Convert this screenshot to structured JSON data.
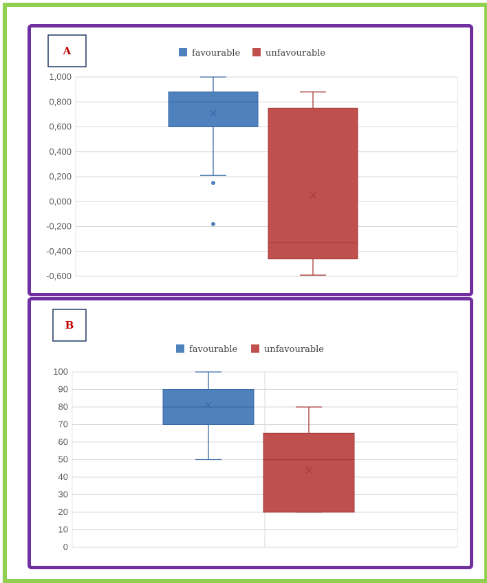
{
  "chart_data": [
    {
      "type": "box",
      "panel_label": "A",
      "legend_position": "top",
      "grid": true,
      "ylim": [
        -0.6,
        1.0
      ],
      "ytick_step": 0.2,
      "ytick_labels": [
        "1,000",
        "0,800",
        "0,600",
        "0,400",
        "0,200",
        "0,000",
        "-0,200",
        "-0,400",
        "-0,600"
      ],
      "vertical_divider": false,
      "series": [
        {
          "name": "favourable",
          "color": "#4f81bd",
          "edge_color": "#3a6aa6",
          "whisker_low": 0.21,
          "q1": 0.6,
          "median": 0.8,
          "q3": 0.88,
          "whisker_high": 1.0,
          "mean": 0.71,
          "outliers": [
            0.15,
            -0.18
          ]
        },
        {
          "name": "unfavourable",
          "color": "#c0504d",
          "edge_color": "#a33c39",
          "whisker_low": -0.59,
          "q1": -0.46,
          "median": -0.33,
          "q3": 0.75,
          "whisker_high": 0.88,
          "mean": 0.05,
          "outliers": []
        }
      ]
    },
    {
      "type": "box",
      "panel_label": "B",
      "legend_position": "top",
      "grid": true,
      "ylim": [
        0,
        100
      ],
      "ytick_step": 10,
      "ytick_labels": [
        "100",
        "90",
        "80",
        "70",
        "60",
        "50",
        "40",
        "30",
        "20",
        "10",
        "0"
      ],
      "vertical_divider": true,
      "series": [
        {
          "name": "favourable",
          "color": "#4f81bd",
          "edge_color": "#3a6aa6",
          "whisker_low": 50,
          "q1": 70,
          "median": 80,
          "q3": 90,
          "whisker_high": 100,
          "mean": 81,
          "outliers": []
        },
        {
          "name": "unfavourable",
          "color": "#c0504d",
          "edge_color": "#a33c39",
          "whisker_low": 20,
          "q1": 20,
          "median": 50,
          "q3": 65,
          "whisker_high": 80,
          "mean": 44,
          "outliers": []
        }
      ]
    }
  ]
}
